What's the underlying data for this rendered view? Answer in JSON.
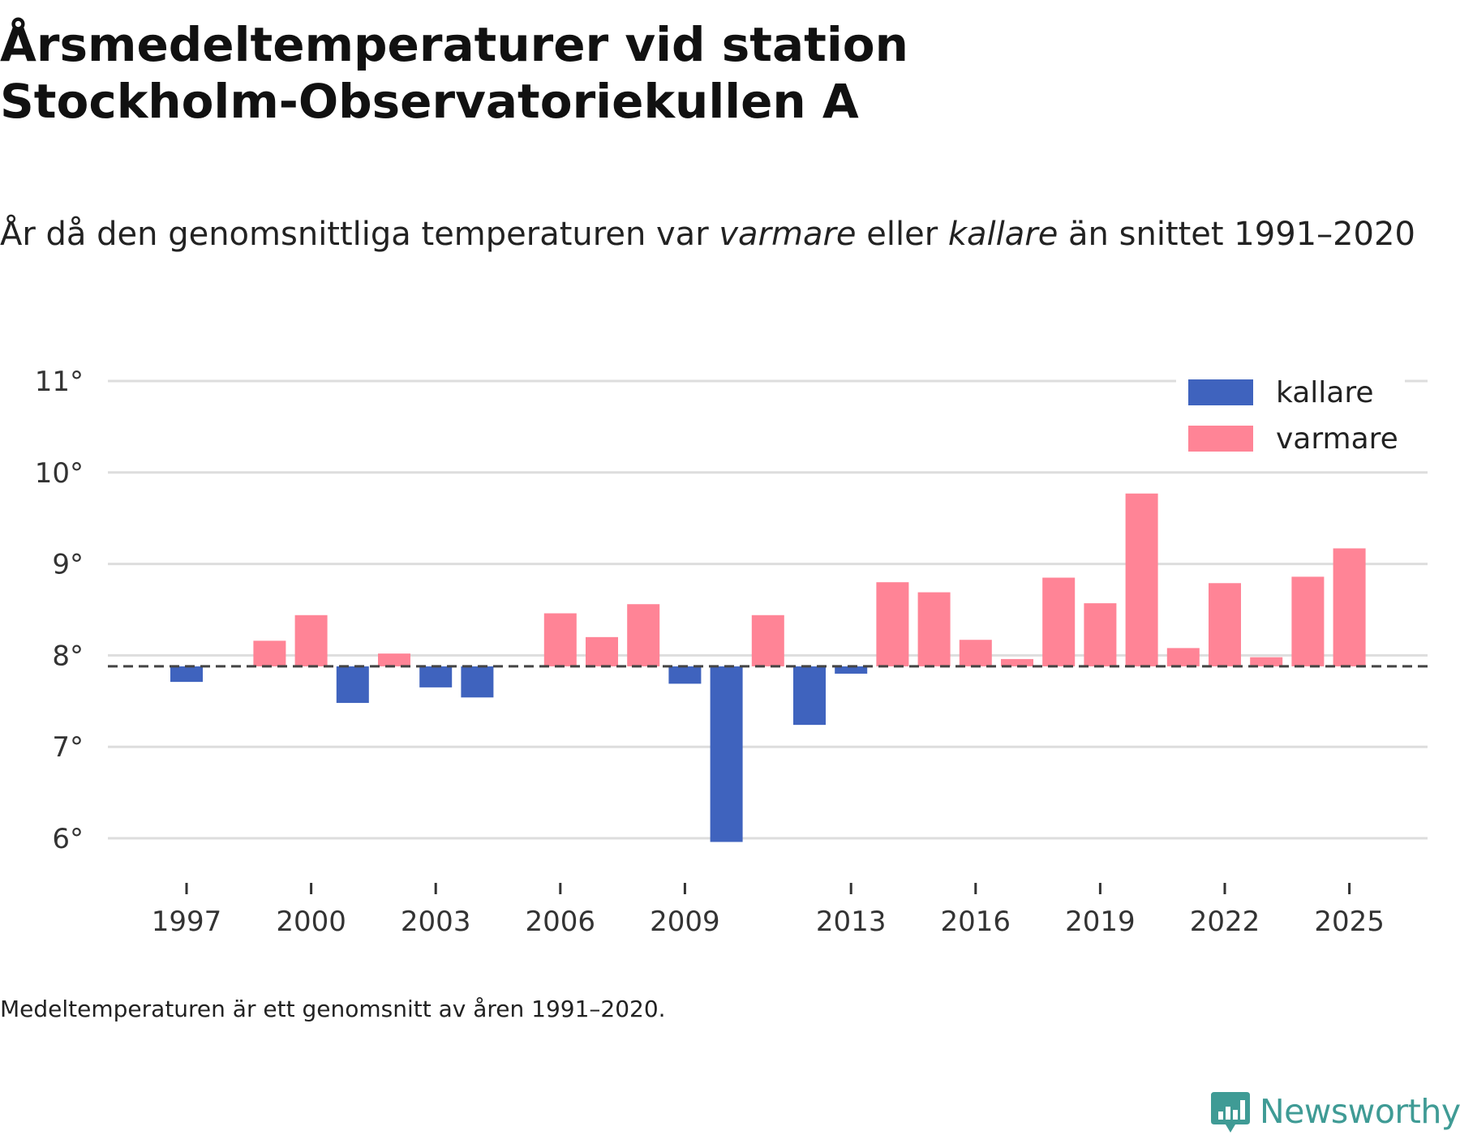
{
  "title_lines": [
    "Årsmedeltemperaturer vid station",
    "Stockholm-Observatoriekullen A"
  ],
  "subtitle": {
    "part1": "År då den genomsnittliga temperaturen var ",
    "warm_word": "varmare",
    "part2": " eller ",
    "cold_word": "kallare",
    "part3": " än snittet 1991–2020"
  },
  "footnote": "Medeltemperaturen är ett genomsnitt av åren 1991–2020.",
  "brand": "Newsworthy",
  "icons": {
    "brand": "newsworthy-logo-icon"
  },
  "colors": {
    "warm": "#ff8496",
    "cold": "#3f63be",
    "reference": "#444444",
    "grid": "#dddddd",
    "brand": "#3f9b95"
  },
  "chart_data": {
    "type": "bar",
    "baseline": 7.88,
    "ylim": [
      5.8,
      11.1
    ],
    "yticks": [
      6,
      7,
      8,
      9,
      10,
      11
    ],
    "ytick_labels": [
      "6°",
      "7°",
      "8°",
      "9°",
      "10°",
      "11°"
    ],
    "xticks": [
      1997,
      2000,
      2003,
      2006,
      2009,
      2013,
      2016,
      2019,
      2022,
      2025
    ],
    "xtick_labels": [
      "1997",
      "2000",
      "2003",
      "2006",
      "2009",
      "2013",
      "2016",
      "2019",
      "2022",
      "2025"
    ],
    "legend": {
      "position": "top-right",
      "entries": [
        {
          "label": "kallare",
          "key": "cold"
        },
        {
          "label": "varmare",
          "key": "warm"
        }
      ]
    },
    "years": [
      1997,
      1998,
      1999,
      2000,
      2001,
      2002,
      2003,
      2004,
      2005,
      2006,
      2007,
      2008,
      2009,
      2010,
      2011,
      2012,
      2013,
      2014,
      2015,
      2016,
      2017,
      2018,
      2019,
      2020,
      2021,
      2022,
      2023,
      2024,
      2025
    ],
    "values": [
      7.71,
      null,
      8.16,
      8.44,
      7.48,
      8.02,
      7.65,
      7.54,
      null,
      8.46,
      8.2,
      8.56,
      7.69,
      5.96,
      8.44,
      7.24,
      7.8,
      8.8,
      8.69,
      8.17,
      7.96,
      8.85,
      8.57,
      9.77,
      8.08,
      8.79,
      7.98,
      8.86,
      9.17
    ]
  }
}
